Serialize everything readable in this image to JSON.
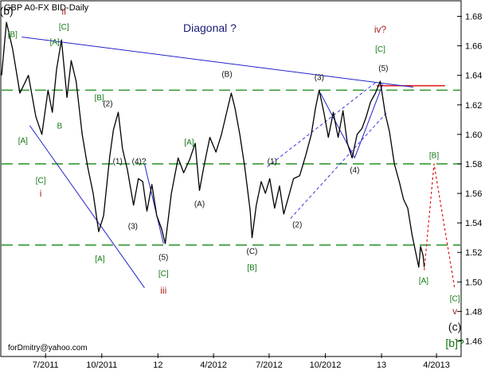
{
  "chart_data": {
    "type": "line",
    "title": "GBP A0-FX BID-Daily",
    "subtitle": "Diagonal ?",
    "footer": "forDmitry@yahoo.com",
    "ylim": [
      1.45,
      1.69
    ],
    "y_ticks": [
      1.46,
      1.48,
      1.5,
      1.52,
      1.54,
      1.56,
      1.58,
      1.6,
      1.62,
      1.64,
      1.66,
      1.68
    ],
    "y_tick_labels": [
      "1.46",
      "1.48",
      "1.50",
      "1.52",
      "1.54",
      "1.56",
      "1.58",
      "1.60",
      "1.62",
      "1.64",
      "1.66",
      "1.68"
    ],
    "x_range": [
      "2011-04-20",
      "2013-05-10"
    ],
    "x_ticks": [
      {
        "date": "2011-07-01",
        "label": "7/2011"
      },
      {
        "date": "2011-10-01",
        "label": "10/2011"
      },
      {
        "date": "2012-01-01",
        "label": "12"
      },
      {
        "date": "2012-04-01",
        "label": "4/2012"
      },
      {
        "date": "2012-07-01",
        "label": "7/2012"
      },
      {
        "date": "2012-10-01",
        "label": "10/2012"
      },
      {
        "date": "2013-01-01",
        "label": "13"
      },
      {
        "date": "2013-04-01",
        "label": "4/2013"
      }
    ],
    "grid": false,
    "series": [
      {
        "role": "price",
        "points": [
          [
            "2011-04-20",
            1.64
          ],
          [
            "2011-04-28",
            1.676
          ],
          [
            "2011-05-08",
            1.658
          ],
          [
            "2011-05-20",
            1.628
          ],
          [
            "2011-06-03",
            1.64
          ],
          [
            "2011-06-15",
            1.612
          ],
          [
            "2011-06-25",
            1.6
          ],
          [
            "2011-07-05",
            1.63
          ],
          [
            "2011-07-12",
            1.615
          ],
          [
            "2011-07-19",
            1.644
          ],
          [
            "2011-07-27",
            1.664
          ],
          [
            "2011-08-05",
            1.625
          ],
          [
            "2011-08-12",
            1.65
          ],
          [
            "2011-08-20",
            1.636
          ],
          [
            "2011-08-30",
            1.6
          ],
          [
            "2011-09-08",
            1.578
          ],
          [
            "2011-09-17",
            1.56
          ],
          [
            "2011-09-26",
            1.534
          ],
          [
            "2011-10-04",
            1.545
          ],
          [
            "2011-10-14",
            1.585
          ],
          [
            "2011-10-20",
            1.603
          ],
          [
            "2011-10-28",
            1.615
          ],
          [
            "2011-11-04",
            1.59
          ],
          [
            "2011-11-12",
            1.576
          ],
          [
            "2011-11-22",
            1.552
          ],
          [
            "2011-11-30",
            1.57
          ],
          [
            "2011-12-07",
            1.568
          ],
          [
            "2011-12-14",
            1.548
          ],
          [
            "2011-12-22",
            1.566
          ],
          [
            "2011-12-30",
            1.545
          ],
          [
            "2012-01-07",
            1.536
          ],
          [
            "2012-01-13",
            1.526
          ],
          [
            "2012-01-23",
            1.56
          ],
          [
            "2012-02-03",
            1.584
          ],
          [
            "2012-02-12",
            1.574
          ],
          [
            "2012-02-22",
            1.583
          ],
          [
            "2012-03-02",
            1.594
          ],
          [
            "2012-03-09",
            1.562
          ],
          [
            "2012-03-16",
            1.578
          ],
          [
            "2012-03-26",
            1.598
          ],
          [
            "2012-04-05",
            1.588
          ],
          [
            "2012-04-14",
            1.6
          ],
          [
            "2012-04-22",
            1.614
          ],
          [
            "2012-04-30",
            1.628
          ],
          [
            "2012-05-06",
            1.618
          ],
          [
            "2012-05-14",
            1.6
          ],
          [
            "2012-05-22",
            1.578
          ],
          [
            "2012-05-31",
            1.548
          ],
          [
            "2012-06-03",
            1.53
          ],
          [
            "2012-06-10",
            1.552
          ],
          [
            "2012-06-18",
            1.568
          ],
          [
            "2012-06-25",
            1.56
          ],
          [
            "2012-07-02",
            1.57
          ],
          [
            "2012-07-10",
            1.55
          ],
          [
            "2012-07-18",
            1.565
          ],
          [
            "2012-07-25",
            1.546
          ],
          [
            "2012-08-02",
            1.558
          ],
          [
            "2012-08-10",
            1.57
          ],
          [
            "2012-08-20",
            1.572
          ],
          [
            "2012-08-30",
            1.586
          ],
          [
            "2012-09-08",
            1.6
          ],
          [
            "2012-09-15",
            1.618
          ],
          [
            "2012-09-21",
            1.63
          ],
          [
            "2012-09-29",
            1.614
          ],
          [
            "2012-10-06",
            1.598
          ],
          [
            "2012-10-14",
            1.615
          ],
          [
            "2012-10-22",
            1.598
          ],
          [
            "2012-10-30",
            1.616
          ],
          [
            "2012-11-06",
            1.594
          ],
          [
            "2012-11-14",
            1.584
          ],
          [
            "2012-11-22",
            1.6
          ],
          [
            "2012-11-30",
            1.604
          ],
          [
            "2012-12-07",
            1.612
          ],
          [
            "2012-12-14",
            1.622
          ],
          [
            "2012-12-22",
            1.628
          ],
          [
            "2012-12-30",
            1.636
          ],
          [
            "2013-01-07",
            1.614
          ],
          [
            "2013-01-14",
            1.602
          ],
          [
            "2013-01-22",
            1.58
          ],
          [
            "2013-01-30",
            1.568
          ],
          [
            "2013-02-06",
            1.556
          ],
          [
            "2013-02-13",
            1.55
          ],
          [
            "2013-02-20",
            1.532
          ],
          [
            "2013-02-26",
            1.52
          ],
          [
            "2013-03-03",
            1.51
          ],
          [
            "2013-03-06",
            1.524
          ],
          [
            "2013-03-10",
            1.518
          ],
          [
            "2013-03-12",
            1.51
          ]
        ]
      },
      {
        "role": "projection",
        "points": [
          [
            "2013-03-12",
            1.508
          ],
          [
            "2013-03-28",
            1.58
          ],
          [
            "2013-05-01",
            1.495
          ]
        ]
      }
    ],
    "hlines": [
      {
        "y": 1.63,
        "color": "#118811",
        "dashed": true
      },
      {
        "y": 1.58,
        "color": "#118811",
        "dashed": true
      },
      {
        "y": 1.525,
        "color": "#118811",
        "dashed": true
      },
      {
        "y": 1.633,
        "color": "#dd2222",
        "dashed": false,
        "x_from": "2012-12-24",
        "x_to": "2013-04-15"
      }
    ],
    "trendlines": [
      {
        "from": [
          "2011-05-23",
          1.666
        ],
        "to": [
          "2013-02-22",
          1.632
        ],
        "color": "#2222cc",
        "dashed": false
      },
      {
        "from": [
          "2011-06-05",
          1.606
        ],
        "to": [
          "2011-12-10",
          1.496
        ],
        "color": "#2222cc",
        "dashed": false
      },
      {
        "from": [
          "2012-06-28",
          1.578
        ],
        "to": [
          "2012-12-25",
          1.636
        ],
        "color": "#3a3adc",
        "dashed": true
      },
      {
        "from": [
          "2012-08-05",
          1.543
        ],
        "to": [
          "2013-01-10",
          1.615
        ],
        "color": "#3a3adc",
        "dashed": true
      },
      {
        "from": [
          "2012-09-23",
          1.628
        ],
        "to": [
          "2012-11-18",
          1.584
        ],
        "color": "#2222cc",
        "dashed": false
      },
      {
        "from": [
          "2012-11-18",
          1.584
        ],
        "to": [
          "2013-01-03",
          1.634
        ],
        "color": "#2222cc",
        "dashed": false
      },
      {
        "from": [
          "2011-12-10",
          1.58
        ],
        "to": [
          "2012-01-10",
          1.526
        ],
        "color": "#2222cc",
        "dashed": false
      }
    ],
    "annotations": [
      {
        "text": "(b)",
        "x": "2011-04-28",
        "y": 1.681,
        "color": "#111111",
        "size": 14
      },
      {
        "text": "[B]",
        "x": "2011-05-08",
        "y": 1.666,
        "color": "#117711",
        "size": 10
      },
      {
        "text": "ii",
        "x": "2011-07-31",
        "y": 1.681,
        "color": "#aa2222",
        "size": 12
      },
      {
        "text": "[C]",
        "x": "2011-07-31",
        "y": 1.671,
        "color": "#117711",
        "size": 10
      },
      {
        "text": "[A]",
        "x": "2011-07-16",
        "y": 1.661,
        "color": "#117711",
        "size": 10
      },
      {
        "text": "[B]",
        "x": "2011-09-27",
        "y": 1.623,
        "color": "#117711",
        "size": 10
      },
      {
        "text": "(2)",
        "x": "2011-10-11",
        "y": 1.619,
        "color": "#111111",
        "size": 10
      },
      {
        "text": "B",
        "x": "2011-07-24",
        "y": 1.604,
        "color": "#117711",
        "size": 10
      },
      {
        "text": "[A]",
        "x": "2011-05-25",
        "y": 1.594,
        "color": "#117711",
        "size": 10
      },
      {
        "text": "(1)",
        "x": "2011-10-27",
        "y": 1.58,
        "color": "#111111",
        "size": 10
      },
      {
        "text": "(4)?",
        "x": "2011-12-01",
        "y": 1.58,
        "color": "#111111",
        "size": 10
      },
      {
        "text": "[A]",
        "x": "2012-02-21",
        "y": 1.593,
        "color": "#117711",
        "size": 10
      },
      {
        "text": "[C]",
        "x": "2011-06-23",
        "y": 1.567,
        "color": "#117711",
        "size": 10
      },
      {
        "text": "i",
        "x": "2011-06-23",
        "y": 1.558,
        "color": "#aa2222",
        "size": 12
      },
      {
        "text": "(A)",
        "x": "2012-03-09",
        "y": 1.551,
        "color": "#111111",
        "size": 10
      },
      {
        "text": "(3)",
        "x": "2011-11-21",
        "y": 1.536,
        "color": "#111111",
        "size": 10
      },
      {
        "text": "[A]",
        "x": "2011-09-28",
        "y": 1.514,
        "color": "#117711",
        "size": 10
      },
      {
        "text": "(5)",
        "x": "2012-01-10",
        "y": 1.515,
        "color": "#111111",
        "size": 10
      },
      {
        "text": "[C]",
        "x": "2012-01-10",
        "y": 1.504,
        "color": "#117711",
        "size": 10
      },
      {
        "text": "iii",
        "x": "2012-01-10",
        "y": 1.492,
        "color": "#aa2222",
        "size": 12
      },
      {
        "text": "(B)",
        "x": "2012-04-23",
        "y": 1.639,
        "color": "#111111",
        "size": 10
      },
      {
        "text": "(1)",
        "x": "2012-07-06",
        "y": 1.58,
        "color": "#111111",
        "size": 10
      },
      {
        "text": "(2)",
        "x": "2012-08-16",
        "y": 1.537,
        "color": "#111111",
        "size": 10
      },
      {
        "text": "(C)",
        "x": "2012-06-03",
        "y": 1.519,
        "color": "#111111",
        "size": 10
      },
      {
        "text": "[B]",
        "x": "2012-06-03",
        "y": 1.508,
        "color": "#117711",
        "size": 10
      },
      {
        "text": "(3)",
        "x": "2012-09-21",
        "y": 1.637,
        "color": "#111111",
        "size": 10
      },
      {
        "text": "iv?",
        "x": "2012-12-30",
        "y": 1.669,
        "color": "#aa2222",
        "size": 12
      },
      {
        "text": "[C]",
        "x": "2012-12-30",
        "y": 1.656,
        "color": "#117711",
        "size": 10
      },
      {
        "text": "(5)",
        "x": "2013-01-04",
        "y": 1.643,
        "color": "#111111",
        "size": 10
      },
      {
        "text": "(4)",
        "x": "2012-11-18",
        "y": 1.574,
        "color": "#111111",
        "size": 10
      },
      {
        "text": "[B]",
        "x": "2013-03-28",
        "y": 1.584,
        "color": "#117711",
        "size": 10
      },
      {
        "text": "[A]",
        "x": "2013-03-11",
        "y": 1.499,
        "color": "#117711",
        "size": 10
      },
      {
        "text": "[C]",
        "x": "2013-05-01",
        "y": 1.487,
        "color": "#117711",
        "size": 10
      },
      {
        "text": "v",
        "x": "2013-05-01",
        "y": 1.478,
        "color": "#aa2222",
        "size": 12
      },
      {
        "text": "(c)",
        "x": "2013-05-01",
        "y": 1.467,
        "color": "#111111",
        "size": 14
      },
      {
        "text": "[b]?",
        "x": "2013-05-01",
        "y": 1.456,
        "color": "#117711",
        "size": 14
      }
    ]
  }
}
